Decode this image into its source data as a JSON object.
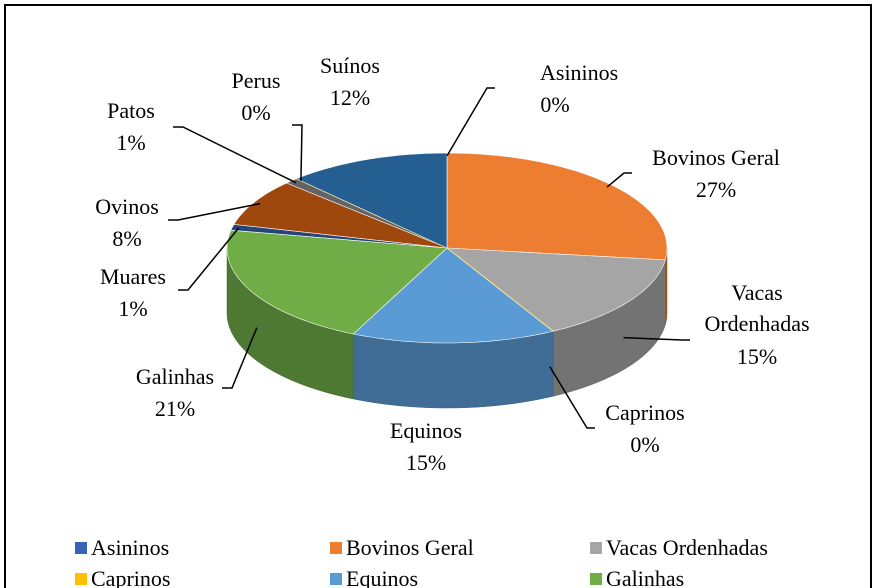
{
  "chart_data": {
    "type": "pie",
    "categories": [
      "Asininos",
      "Bovinos Geral",
      "Vacas Ordenhadas",
      "Caprinos",
      "Equinos",
      "Galinhas",
      "Muares",
      "Ovinos",
      "Patos",
      "Perus",
      "Suínos"
    ],
    "values": [
      0,
      27,
      15,
      0,
      15,
      21,
      1,
      8,
      1,
      0,
      12
    ],
    "value_labels": [
      "0%",
      "27%",
      "15%",
      "0%",
      "15%",
      "21%",
      "1%",
      "8%",
      "1%",
      "0%",
      "12%"
    ],
    "colors": [
      "#3563b5",
      "#ed7d31",
      "#a5a5a5",
      "#ffc000",
      "#5b9bd5",
      "#70ad47",
      "#264478",
      "#9e480e",
      "#636363",
      "#997300",
      "#255e91"
    ],
    "legend": "bottom"
  }
}
